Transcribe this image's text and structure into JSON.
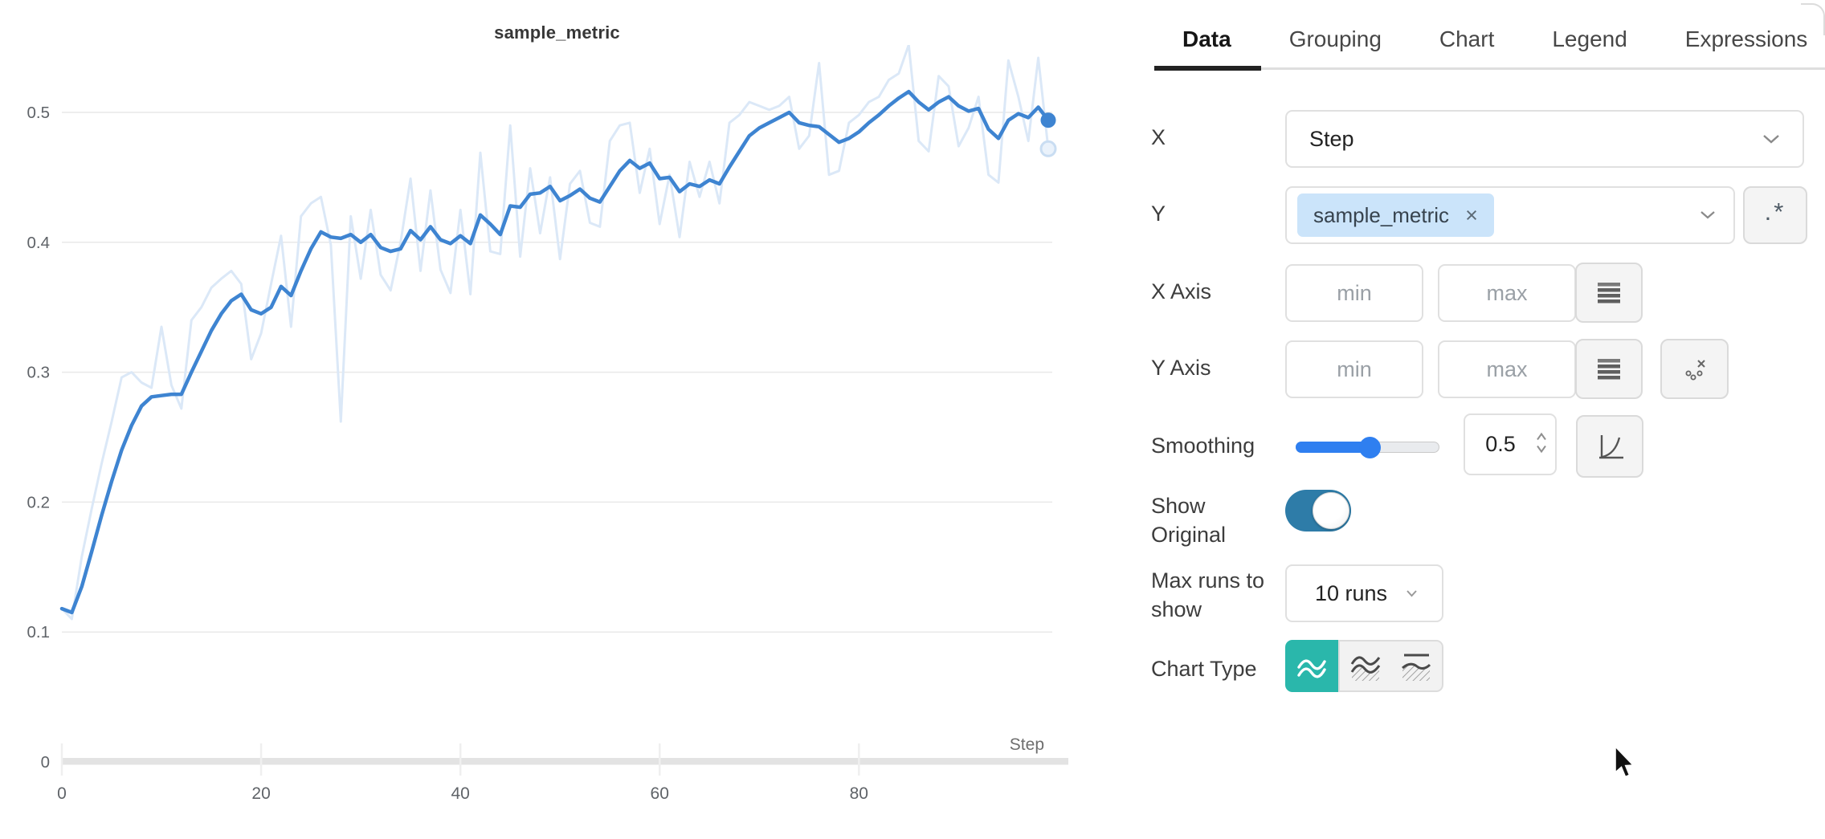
{
  "colors": {
    "smoothed_line": "#3e84d1",
    "original_line": "#dbe8f7",
    "selected_chart_type": "#2ab7ab",
    "toggle_on": "#2e7ca8",
    "slider": "#2f7ff0",
    "tag_background": "#cbe4fa"
  },
  "chart_data": {
    "type": "line",
    "title": "sample_metric",
    "xlabel": "Step",
    "ylabel": "",
    "x_ticks": [
      0,
      20,
      40,
      60,
      80
    ],
    "y_ticks": [
      0,
      0.1,
      0.2,
      0.3,
      0.4,
      0.5
    ],
    "xlim": [
      0,
      99
    ],
    "ylim": [
      0,
      0.55
    ],
    "grid": "horizontal",
    "legend": "none",
    "x_values_are_indices": true,
    "series": [
      {
        "name": "sample_metric (original)",
        "color": "#dbe8f7",
        "width": 3,
        "end_marker": "open",
        "values": [
          0.118,
          0.11,
          0.158,
          0.195,
          0.23,
          0.262,
          0.296,
          0.3,
          0.292,
          0.288,
          0.335,
          0.29,
          0.272,
          0.34,
          0.35,
          0.365,
          0.372,
          0.378,
          0.368,
          0.31,
          0.33,
          0.368,
          0.405,
          0.335,
          0.42,
          0.43,
          0.435,
          0.398,
          0.262,
          0.42,
          0.372,
          0.425,
          0.375,
          0.363,
          0.4,
          0.449,
          0.378,
          0.44,
          0.379,
          0.361,
          0.425,
          0.36,
          0.469,
          0.393,
          0.391,
          0.49,
          0.389,
          0.457,
          0.407,
          0.45,
          0.387,
          0.445,
          0.455,
          0.415,
          0.412,
          0.478,
          0.49,
          0.492,
          0.438,
          0.472,
          0.414,
          0.452,
          0.404,
          0.462,
          0.435,
          0.462,
          0.43,
          0.492,
          0.498,
          0.508,
          0.505,
          0.502,
          0.505,
          0.512,
          0.472,
          0.482,
          0.538,
          0.452,
          0.455,
          0.492,
          0.498,
          0.508,
          0.512,
          0.525,
          0.53,
          0.552,
          0.478,
          0.47,
          0.528,
          0.52,
          0.474,
          0.488,
          0.512,
          0.452,
          0.446,
          0.54,
          0.512,
          0.478,
          0.542,
          0.472
        ]
      },
      {
        "name": "sample_metric (smoothed)",
        "color": "#3e84d1",
        "width": 4.5,
        "end_marker": "filled",
        "values": [
          0.118,
          0.115,
          0.135,
          0.162,
          0.19,
          0.216,
          0.24,
          0.259,
          0.274,
          0.281,
          0.282,
          0.283,
          0.283,
          0.3,
          0.316,
          0.332,
          0.345,
          0.355,
          0.36,
          0.348,
          0.345,
          0.35,
          0.366,
          0.359,
          0.378,
          0.395,
          0.408,
          0.404,
          0.403,
          0.406,
          0.4,
          0.406,
          0.396,
          0.393,
          0.395,
          0.409,
          0.402,
          0.412,
          0.402,
          0.399,
          0.405,
          0.399,
          0.421,
          0.414,
          0.406,
          0.428,
          0.427,
          0.437,
          0.438,
          0.443,
          0.432,
          0.436,
          0.441,
          0.434,
          0.431,
          0.443,
          0.455,
          0.463,
          0.457,
          0.461,
          0.449,
          0.45,
          0.439,
          0.445,
          0.443,
          0.448,
          0.445,
          0.458,
          0.47,
          0.482,
          0.488,
          0.492,
          0.496,
          0.5,
          0.492,
          0.49,
          0.489,
          0.483,
          0.477,
          0.48,
          0.485,
          0.492,
          0.498,
          0.505,
          0.511,
          0.516,
          0.508,
          0.502,
          0.508,
          0.512,
          0.505,
          0.501,
          0.503,
          0.487,
          0.48,
          0.494,
          0.499,
          0.496,
          0.504,
          0.494
        ]
      }
    ]
  },
  "panel": {
    "tabs": [
      {
        "label": "Data",
        "active": true
      },
      {
        "label": "Grouping",
        "active": false
      },
      {
        "label": "Chart",
        "active": false
      },
      {
        "label": "Legend",
        "active": false
      },
      {
        "label": "Expressions",
        "active": false
      }
    ],
    "x_row": {
      "label": "X",
      "value": "Step"
    },
    "y_row": {
      "label": "Y",
      "tag": "sample_metric",
      "remove_icon_label": "×",
      "regex_button": ".*"
    },
    "x_axis": {
      "label": "X Axis",
      "min_placeholder": "min",
      "max_placeholder": "max"
    },
    "y_axis": {
      "label": "Y Axis",
      "min_placeholder": "min",
      "max_placeholder": "max"
    },
    "smoothing": {
      "label": "Smoothing",
      "value": "0.5"
    },
    "show_original": {
      "label": "Show Original",
      "on": true
    },
    "max_runs": {
      "label": "Max runs to show",
      "value": "10 runs"
    },
    "chart_type": {
      "label": "Chart Type",
      "selected_index": 0,
      "options": [
        "line",
        "area",
        "percentile"
      ]
    }
  }
}
